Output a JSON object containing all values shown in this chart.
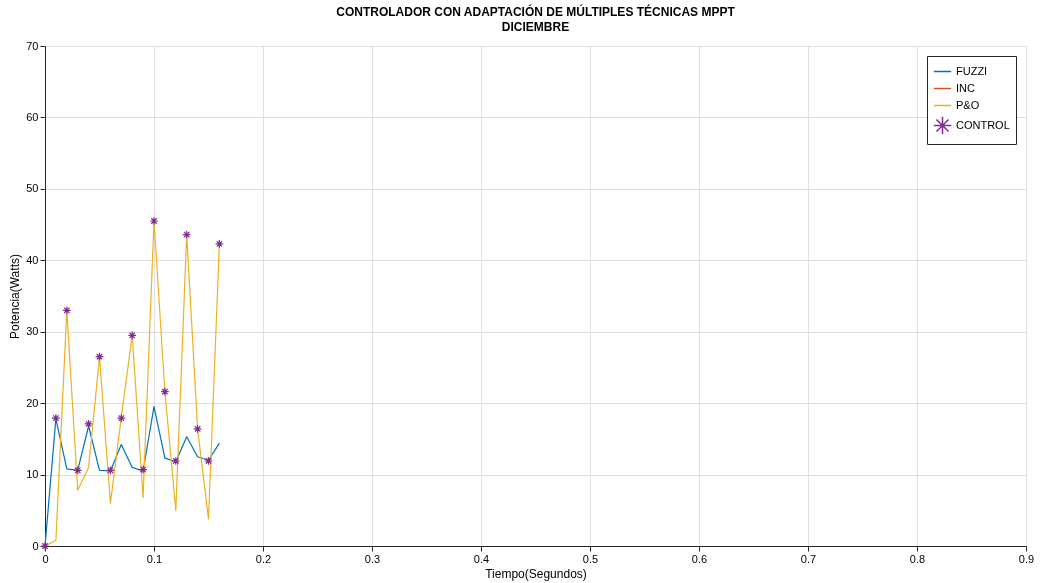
{
  "chart_data": {
    "type": "line",
    "title": "CONTROLADOR CON ADAPTACIÓN DE MÚLTIPLES TÉCNICAS MPPT",
    "subtitle": "DICIEMBRE",
    "xlabel": "Tiempo(Segundos)",
    "ylabel": "Potencia(Watts)",
    "x": [
      0,
      0.01,
      0.02,
      0.03,
      0.04,
      0.05,
      0.06,
      0.07,
      0.08,
      0.09,
      0.1,
      0.11,
      0.12,
      0.13,
      0.14,
      0.15,
      0.16
    ],
    "series": [
      {
        "name": "FUZZI",
        "color": "#0072bd",
        "line_style": "solid",
        "values": [
          0,
          17.8,
          10.8,
          10.6,
          16.8,
          10.6,
          10.5,
          14.2,
          11,
          10.5,
          19.5,
          12.3,
          11.8,
          15.3,
          12.5,
          12,
          14.4
        ]
      },
      {
        "name": "INC",
        "color": "#d95319",
        "line_style": "solid",
        "values": [
          null,
          null,
          null,
          null,
          null,
          null,
          null,
          null,
          null,
          null,
          null,
          null,
          null,
          null,
          null,
          null,
          null
        ]
      },
      {
        "name": "P&O",
        "color": "#edb120",
        "line_style": "solid",
        "values": [
          0,
          0.8,
          33,
          7.8,
          11,
          26.5,
          6,
          18,
          29.5,
          6.8,
          45.5,
          21.6,
          5,
          43.6,
          16.4,
          3.8,
          42.3
        ]
      },
      {
        "name": "CONTROL",
        "color": "#7e2f8e",
        "type": "scatter",
        "marker": "cross",
        "values": [
          0,
          17.9,
          33,
          10.6,
          17.1,
          26.5,
          10.6,
          17.9,
          29.5,
          10.7,
          45.5,
          21.6,
          11.9,
          43.6,
          16.4,
          11.9,
          42.3
        ]
      }
    ],
    "xlim": [
      0,
      0.9
    ],
    "xticks": [
      0,
      0.1,
      0.2,
      0.3,
      0.4,
      0.5,
      0.6,
      0.7,
      0.8,
      0.9
    ],
    "ylim": [
      0,
      70
    ],
    "yticks": [
      0,
      10,
      20,
      30,
      40,
      50,
      60,
      70
    ],
    "grid": true,
    "legend": "top right"
  }
}
